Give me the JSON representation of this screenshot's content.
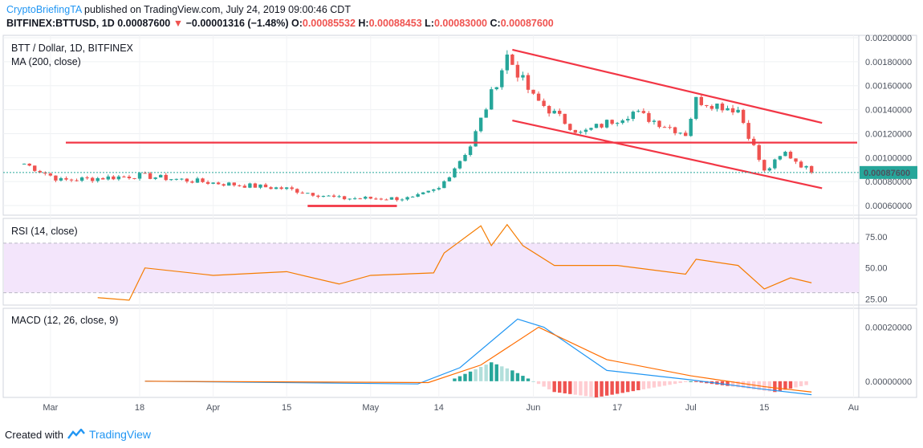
{
  "header": {
    "author": "CryptoBriefingTA",
    "published": "published on TradingView.com, July 24, 2019 09:00:46 CDT",
    "symbol": "BITFINEX:BTTUSD, 1D",
    "last": "0.00087600",
    "change_arrow": "▼",
    "change": "−0.00001316 (−1.48%)",
    "o_label": "O:",
    "o": "0.00085532",
    "h_label": "H:",
    "h": "0.00088453",
    "l_label": "L:",
    "l": "0.00083000",
    "c_label": "C:",
    "c": "0.00087600"
  },
  "footer": {
    "created_with": "Created with",
    "brand": "TradingView"
  },
  "colors": {
    "up": "#26a69a",
    "down": "#ef5350",
    "trend": "#f23645",
    "rsi_band": "#f3e5fb",
    "rsi_line": "#f57c00",
    "macd": "#2196f3",
    "signal": "#ff6d00"
  },
  "chart_data": [
    {
      "type": "candlestick",
      "title": "BTT / Dollar, 1D, BITFINEX",
      "indicator": "MA (200, close)",
      "y_ticks": [
        "0.00200000",
        "0.00180000",
        "0.00160000",
        "0.00140000",
        "0.00120000",
        "0.00100000",
        "0.00080000",
        "0.00060000"
      ],
      "ylim": [
        0.00052,
        0.00202
      ],
      "x_ticks": [
        "Mar",
        "18",
        "Apr",
        "15",
        "May",
        "14",
        "Jun",
        "17",
        "Jul",
        "15",
        "Au"
      ],
      "last_price_label": "0.00087600",
      "last_price": 0.000876,
      "horizontal_level": 0.001125,
      "support_bar": 0.000597,
      "channel_upper": [
        [
          0.0019,
          "2019-05-28"
        ],
        [
          0.00129,
          "2019-07-26"
        ]
      ],
      "channel_lower": [
        [
          0.00131,
          "2019-05-28"
        ],
        [
          0.000745,
          "2019-07-26"
        ]
      ],
      "key_points": [
        {
          "date": "2019-02-24",
          "close": 0.00095
        },
        {
          "date": "2019-03-03",
          "close": 0.00081
        },
        {
          "date": "2019-03-18",
          "close": 0.00085
        },
        {
          "date": "2019-04-01",
          "close": 0.00079
        },
        {
          "date": "2019-04-15",
          "close": 0.00074
        },
        {
          "date": "2019-04-25",
          "close": 0.00066
        },
        {
          "date": "2019-05-09",
          "close": 0.00066
        },
        {
          "date": "2019-05-14",
          "close": 0.00074
        },
        {
          "date": "2019-05-20",
          "close": 0.0011
        },
        {
          "date": "2019-05-27",
          "close": 0.00185
        },
        {
          "date": "2019-06-01",
          "close": 0.0015
        },
        {
          "date": "2019-06-10",
          "close": 0.0012
        },
        {
          "date": "2019-06-20",
          "close": 0.00138
        },
        {
          "date": "2019-06-30",
          "close": 0.0012
        },
        {
          "date": "2019-07-02",
          "close": 0.00148
        },
        {
          "date": "2019-07-10",
          "close": 0.0014
        },
        {
          "date": "2019-07-15",
          "close": 0.00088
        },
        {
          "date": "2019-07-19",
          "close": 0.00104
        },
        {
          "date": "2019-07-24",
          "close": 0.000876
        }
      ]
    },
    {
      "type": "line",
      "title": "RSI (14, close)",
      "y_ticks": [
        "75.00",
        "50.00",
        "25.00"
      ],
      "ylim": [
        20,
        90
      ],
      "band": [
        30,
        70
      ],
      "series": [
        {
          "points": [
            [
              "2019-03-10",
              26
            ],
            [
              "2019-03-16",
              24
            ],
            [
              "2019-03-19",
              50
            ],
            [
              "2019-04-01",
              44
            ],
            [
              "2019-04-15",
              47
            ],
            [
              "2019-04-25",
              37
            ],
            [
              "2019-05-01",
              44
            ],
            [
              "2019-05-13",
              46
            ],
            [
              "2019-05-15",
              62
            ],
            [
              "2019-05-22",
              84
            ],
            [
              "2019-05-24",
              68
            ],
            [
              "2019-05-27",
              85
            ],
            [
              "2019-05-30",
              68
            ],
            [
              "2019-06-05",
              52
            ],
            [
              "2019-06-17",
              52
            ],
            [
              "2019-06-30",
              45
            ],
            [
              "2019-07-02",
              57
            ],
            [
              "2019-07-10",
              52
            ],
            [
              "2019-07-15",
              33
            ],
            [
              "2019-07-20",
              42
            ],
            [
              "2019-07-24",
              38
            ]
          ]
        }
      ]
    },
    {
      "type": "line",
      "title": "MACD (12, 26, close, 9)",
      "y_ticks": [
        "0.00020000",
        "0.00000000"
      ],
      "ylim": [
        -6e-05,
        0.00027
      ],
      "series": [
        {
          "points": [
            [
              "2019-03-19",
              0
            ],
            [
              "2019-05-10",
              -1e-05
            ],
            [
              "2019-05-18",
              5e-05
            ],
            [
              "2019-05-29",
              0.00023
            ],
            [
              "2019-06-03",
              0.0002
            ],
            [
              "2019-06-15",
              4e-05
            ],
            [
              "2019-07-01",
              5e-06
            ],
            [
              "2019-07-15",
              -3e-05
            ],
            [
              "2019-07-24",
              -5e-05
            ]
          ]
        },
        {
          "points": [
            [
              "2019-03-19",
              0
            ],
            [
              "2019-05-12",
              -5e-06
            ],
            [
              "2019-05-22",
              6e-05
            ],
            [
              "2019-06-02",
              0.0002
            ],
            [
              "2019-06-15",
              8e-05
            ],
            [
              "2019-07-01",
              2e-05
            ],
            [
              "2019-07-15",
              -2e-05
            ],
            [
              "2019-07-24",
              -4e-05
            ]
          ]
        }
      ],
      "histogram": [
        [
          "2019-05-17",
          1e-05
        ],
        [
          "2019-05-24",
          7e-05
        ],
        [
          "2019-05-28",
          4e-05
        ],
        [
          "2019-06-05",
          -4e-05
        ],
        [
          "2019-06-13",
          -6e-05
        ],
        [
          "2019-07-01",
          0
        ],
        [
          "2019-07-17",
          -4e-05
        ],
        [
          "2019-07-24",
          -1e-05
        ]
      ]
    }
  ]
}
